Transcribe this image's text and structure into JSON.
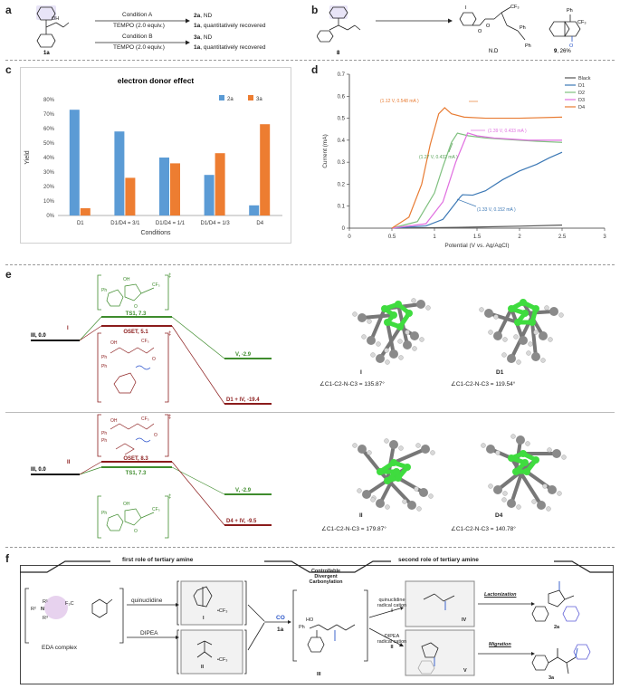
{
  "panel_a": {
    "letter": "a",
    "compound": "1a",
    "row1": {
      "condition": "Condition A",
      "reagent": "TEMPO  (2.0 equiv.)",
      "result_product": "2a",
      "result_product_suffix": ", ND",
      "result_recovery": "1a",
      "result_recovery_suffix": ", quantitatively recovered"
    },
    "row2": {
      "condition": "Condition B",
      "reagent": "TEMPO  (2.0 equiv.)",
      "result_product": "3a",
      "result_product_suffix": ", ND",
      "result_recovery": "1a",
      "result_recovery_suffix": ", quantitatively recovered"
    }
  },
  "panel_b": {
    "letter": "b",
    "start": "8",
    "condition": "Condition B",
    "product1_label": "N.D",
    "product2_label": "9",
    "product2_yield": ", 26%",
    "labels": {
      "I": "I",
      "O": "O",
      "CF3": "CF₃",
      "Ph": "Ph"
    }
  },
  "panel_c": {
    "letter": "c",
    "chart_data": {
      "type": "bar",
      "title": "electron donor effect",
      "xlabel": "Conditions",
      "ylabel": "Yield",
      "categories": [
        "D1",
        "D1/D4 = 3/1",
        "D1/D4 = 1/1",
        "D1/D4 = 1/3",
        "D4"
      ],
      "series": [
        {
          "name": "2a",
          "color": "#5b9bd5",
          "values": [
            73,
            58,
            40,
            28,
            7
          ]
        },
        {
          "name": "3a",
          "color": "#ed7d31",
          "values": [
            5,
            26,
            36,
            43,
            63
          ]
        }
      ],
      "ylim": [
        0,
        80
      ],
      "yticks": [
        "0%",
        "10%",
        "20%",
        "30%",
        "40%",
        "50%",
        "60%",
        "70%",
        "80%"
      ],
      "legend": "top-right",
      "grid": false
    }
  },
  "panel_d": {
    "letter": "d",
    "chart_data": {
      "type": "line",
      "xlabel": "Potential (V vs. Ag/AgCl)",
      "ylabel": "Current (mA)",
      "xlim": [
        0,
        3
      ],
      "ylim": [
        0,
        0.7
      ],
      "xticks": [
        "0",
        "0.5",
        "1",
        "1.5",
        "2",
        "2.5",
        "3"
      ],
      "yticks": [
        "0",
        "0.1",
        "0.2",
        "0.3",
        "0.4",
        "0.5",
        "0.6",
        "0.7"
      ],
      "legend": "top-right",
      "series": [
        {
          "name": "Black",
          "color": "#555555",
          "x": [
            0.5,
            1.0,
            1.5,
            2.0,
            2.5
          ],
          "y": [
            0.0,
            0.002,
            0.005,
            0.009,
            0.014
          ]
        },
        {
          "name": "D1",
          "color": "#3c78b5",
          "x": [
            0.5,
            0.9,
            1.1,
            1.2,
            1.3,
            1.33,
            1.45,
            1.6,
            1.8,
            2.0,
            2.2,
            2.35,
            2.5
          ],
          "y": [
            0.0,
            0.01,
            0.04,
            0.09,
            0.14,
            0.152,
            0.15,
            0.17,
            0.22,
            0.26,
            0.29,
            0.32,
            0.345
          ]
        },
        {
          "name": "D2",
          "color": "#7fc07f",
          "x": [
            0.5,
            0.8,
            1.0,
            1.1,
            1.2,
            1.27,
            1.4,
            1.6,
            1.8,
            2.0,
            2.2,
            2.5
          ],
          "y": [
            0.0,
            0.03,
            0.16,
            0.28,
            0.39,
            0.432,
            0.42,
            0.41,
            0.405,
            0.4,
            0.395,
            0.39
          ]
        },
        {
          "name": "D3",
          "color": "#e06fe0",
          "x": [
            0.5,
            0.9,
            1.1,
            1.25,
            1.39,
            1.5,
            1.7,
            1.9,
            2.1,
            2.3,
            2.5
          ],
          "y": [
            0.0,
            0.02,
            0.12,
            0.3,
            0.433,
            0.42,
            0.41,
            0.405,
            0.4,
            0.4,
            0.4
          ]
        },
        {
          "name": "D4",
          "color": "#e87b32",
          "x": [
            0.5,
            0.7,
            0.85,
            0.95,
            1.05,
            1.12,
            1.2,
            1.35,
            1.6,
            2.0,
            2.5
          ],
          "y": [
            0.0,
            0.05,
            0.2,
            0.38,
            0.52,
            0.548,
            0.52,
            0.505,
            0.5,
            0.5,
            0.505
          ]
        }
      ],
      "annotations": [
        {
          "text": "(1.12 V, 0.548 mA )",
          "color": "#e87b32"
        },
        {
          "text": "(1.39 V, 0.433 mA )",
          "color": "#e06fe0"
        },
        {
          "text": "(1.27 V, 0.432 mA )",
          "color": "#5aa25a"
        },
        {
          "text": "(1.33 V, 0.152 mA )",
          "color": "#3c78b5"
        }
      ]
    }
  },
  "panel_e": {
    "letter": "e",
    "top": {
      "start": "III, 0.0",
      "ts1": "TS1, 7.3",
      "oset": "OSET, 5.1",
      "v": "V, -2.9",
      "d1iv": "D1 + IV, -19.4",
      "marker": "I",
      "struct1_label": "I",
      "struct1_angle": "∠C1-C2-N-C3 = 135.87°",
      "struct2_label": "D1",
      "struct2_angle": "∠C1-C2-N-C3 = 119.54°"
    },
    "bottom": {
      "start": "III, 0.0",
      "oset": "OSET, 8.3",
      "ts1": "TS1, 7.3",
      "v": "V, -2.9",
      "d4iv": "D4 + IV, -9.5",
      "marker": "II",
      "struct1_label": "II",
      "struct1_angle": "∠C1-C2-N-C3 = 179.87°",
      "struct2_label": "D4",
      "struct2_angle": "∠C1-C2-N-C3 = 140.78°"
    },
    "bracket_labels": {
      "Ph": "Ph",
      "OH": "OH",
      "O": "O",
      "CF3": "CF₃",
      "ddagger": "‡"
    }
  },
  "panel_f": {
    "letter": "f",
    "first_role": "first role of tertiary amine",
    "second_role": "second role of tertiary amine",
    "center_title_1": "Controllable",
    "center_title_2": "Divergent",
    "center_title_3": "Carbonylation",
    "eda_label": "EDA complex",
    "eda_r1": "R¹",
    "eda_r2": "R²",
    "eda_n": "N",
    "eda_r3": "R³",
    "eda_cf3": "F₃C",
    "quinuclidine": "quinuclidine",
    "dipea": "DIPEA",
    "box_I_label": "I",
    "box_II_label": "II",
    "cf3_radical": "•CF₃",
    "co": "CO",
    "sub": "1a",
    "intermediate": "III",
    "quin_radical_1": "quinuclidine",
    "quin_radical_2": "radical cation",
    "quin_radical_num": "I",
    "dipea_radical_1": "DIPEA",
    "dipea_radical_2": "radical cation",
    "dipea_radical_num": "II",
    "iv_label": "IV",
    "v_label": "V",
    "lactonization": "Lactonization",
    "migration": "Migration",
    "prod_2a": "2a",
    "prod_3a": "3a",
    "ho": "HO",
    "ph": "Ph"
  }
}
